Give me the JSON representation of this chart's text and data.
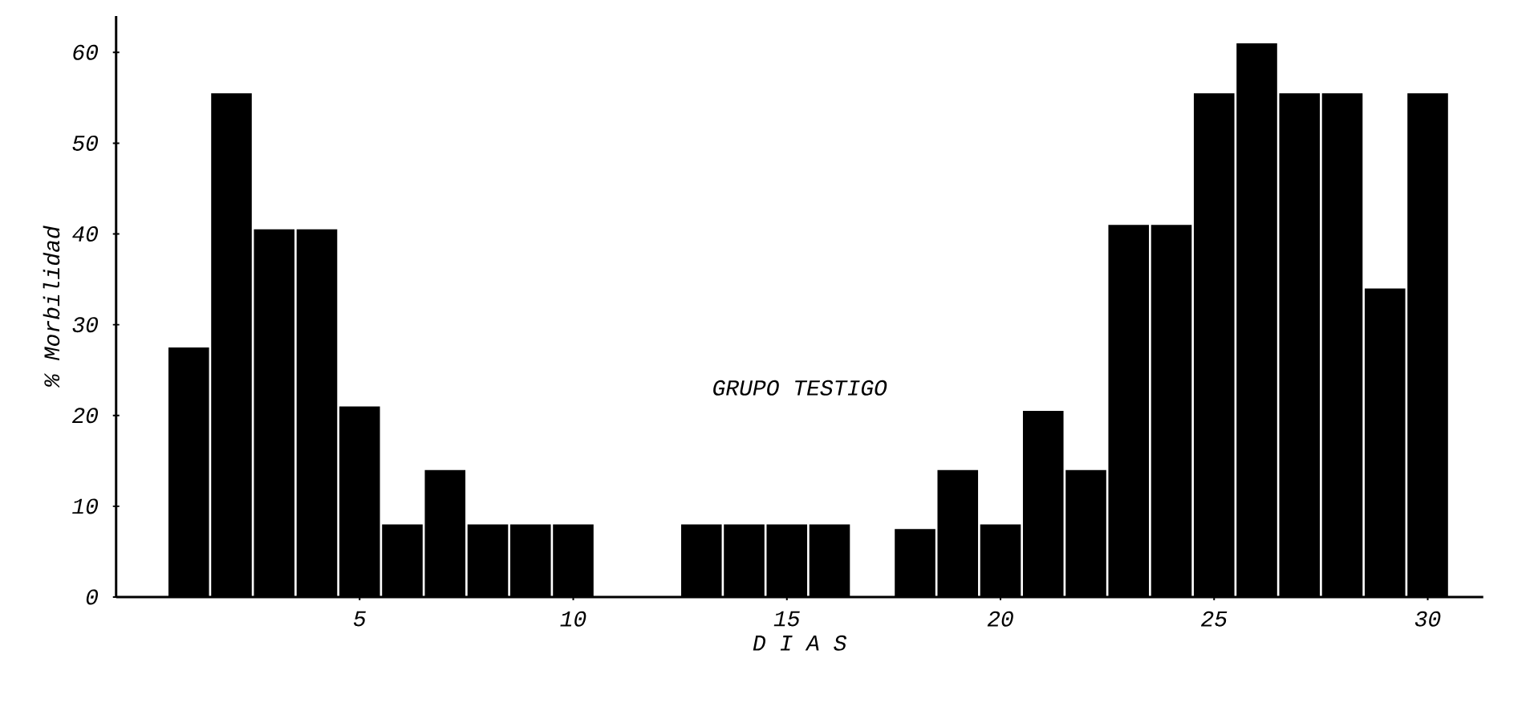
{
  "chart_data": {
    "type": "bar",
    "x": [
      1,
      2,
      3,
      4,
      5,
      6,
      7,
      8,
      9,
      10,
      11,
      12,
      13,
      14,
      15,
      16,
      17,
      18,
      19,
      20,
      21,
      22,
      23,
      24,
      25,
      26,
      27,
      28,
      29,
      30
    ],
    "values": [
      27.5,
      55.5,
      40.5,
      40.5,
      21,
      8,
      14,
      8,
      8,
      8,
      0,
      0,
      8,
      8,
      8,
      8,
      0,
      7.5,
      14,
      8,
      20.5,
      14,
      41,
      41,
      55.5,
      61,
      55.5,
      55.5,
      34,
      55.5
    ],
    "color": "#000000",
    "xlim": [
      -0.7,
      31.3
    ],
    "xticks": [
      5,
      10,
      15,
      20,
      25,
      30
    ],
    "ylim": [
      0,
      64
    ],
    "yticks": [
      0,
      10,
      20,
      30,
      40,
      50,
      60
    ],
    "xlabel": "D I A S",
    "ylabel": "% Morbilidad",
    "annotations": [
      "GRUPO TESTIGO"
    ],
    "grid": false
  }
}
